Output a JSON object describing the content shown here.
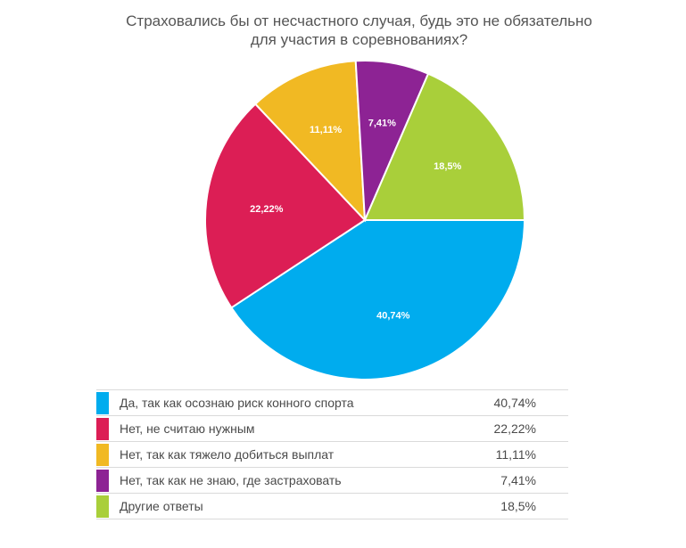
{
  "chart_data": {
    "type": "pie",
    "title_lines": [
      "Страховались бы от несчастного случая, будь это не обязательно",
      "для участия в соревнованиях?"
    ],
    "slices": [
      {
        "label": "Да, так как осознаю риск конного спорта",
        "value": 40.74,
        "display": "40,74%",
        "color": "#00acee"
      },
      {
        "label": "Нет, не считаю нужным",
        "value": 22.22,
        "display": "22,22%",
        "color": "#dc1e55"
      },
      {
        "label": "Нет, так как тяжело добиться выплат",
        "value": 11.11,
        "display": "11,11%",
        "color": "#f1b923"
      },
      {
        "label": "Нет, так как не знаю, где застраховать",
        "value": 7.41,
        "display": "7,41%",
        "color": "#8d2394"
      },
      {
        "label": "Другие ответы",
        "value": 18.5,
        "display": "18,5%",
        "color": "#a9cf3a"
      }
    ],
    "legend_placement": "bottom"
  }
}
